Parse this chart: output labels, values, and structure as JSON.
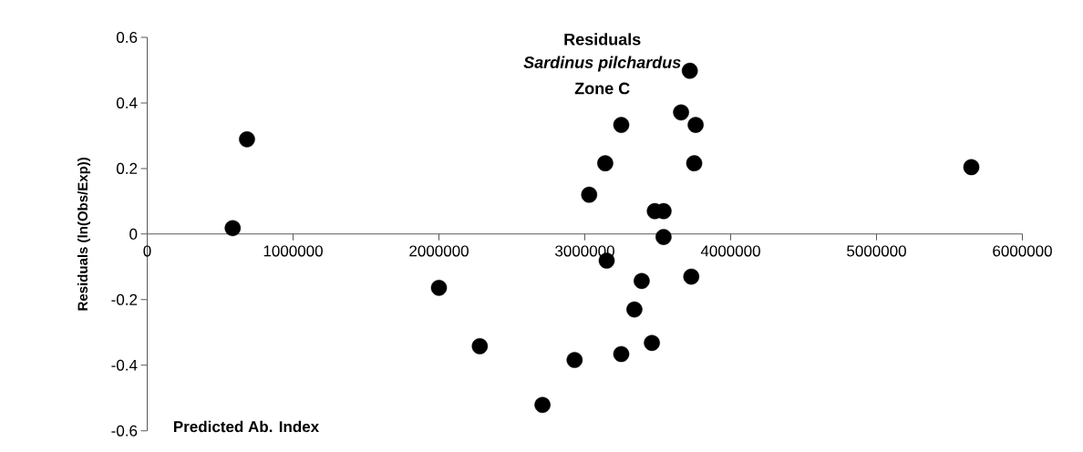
{
  "chart_data": {
    "type": "scatter",
    "title": "Residuals",
    "subtitle": "Sardinus pilchardus",
    "annotations": [
      "Zone C"
    ],
    "xlabel": "Predicted Ab. Index",
    "ylabel": "Residuals (ln(Obs/Exp))",
    "marker": "circle",
    "series": [
      {
        "color": "#000000",
        "x": [
          586000,
          684000,
          2000000,
          2280000,
          2930000,
          2710000,
          3720000,
          3660000,
          3250000,
          3760000,
          3140000,
          3750000,
          5650000,
          3030000,
          3480000,
          3540000,
          3540000,
          3150000,
          3730000,
          3390000,
          3340000,
          3460000,
          3250000
        ],
        "values": [
          0.018,
          0.289,
          -0.164,
          -0.342,
          -0.384,
          -0.521,
          0.498,
          0.371,
          0.333,
          0.333,
          0.216,
          0.216,
          0.204,
          0.12,
          0.07,
          0.07,
          -0.009,
          -0.081,
          -0.13,
          -0.143,
          -0.23,
          -0.332,
          -0.366
        ]
      }
    ],
    "xlim": [
      0,
      6000000
    ],
    "ylim": [
      -0.6,
      0.6
    ],
    "xticks": [
      0,
      1000000,
      2000000,
      3000000,
      4000000,
      5000000,
      6000000
    ],
    "yticks": [
      -0.6,
      -0.4,
      -0.2,
      0,
      0.2,
      0.4,
      0.6
    ]
  }
}
